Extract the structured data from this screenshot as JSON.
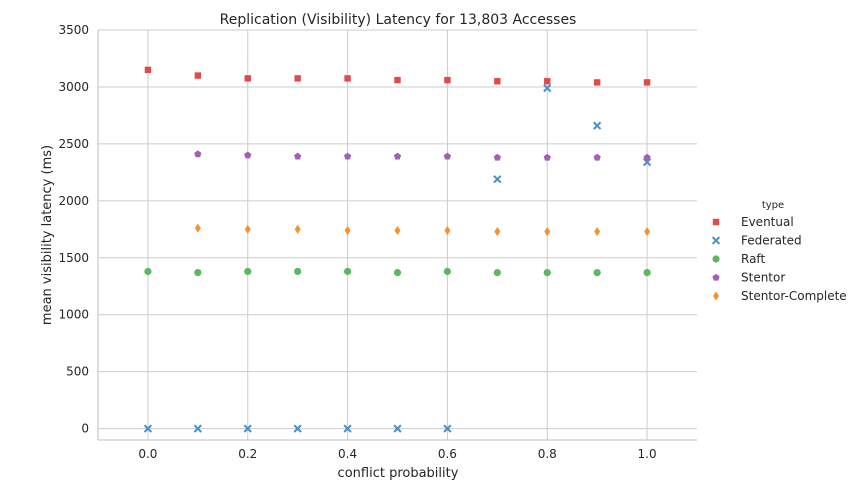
{
  "chart_data": {
    "type": "scatter",
    "title": "Replication (Visibility) Latency for 13,803 Accesses",
    "xlabel": "conflict probability",
    "ylabel": "mean visibility latency (ms)",
    "xlim": [
      -0.1,
      1.1
    ],
    "ylim": [
      -100,
      3500
    ],
    "xticks": [
      0.0,
      0.2,
      0.4,
      0.6,
      0.8,
      1.0
    ],
    "xtick_labels": [
      "0.0",
      "0.2",
      "0.4",
      "0.6",
      "0.8",
      "1.0"
    ],
    "yticks": [
      0,
      500,
      1000,
      1500,
      2000,
      2500,
      3000,
      3500
    ],
    "ytick_labels": [
      "0",
      "500",
      "1000",
      "1500",
      "2000",
      "2500",
      "3000",
      "3500"
    ],
    "grid": true,
    "legend_title": "type",
    "legend_position": "right",
    "series": [
      {
        "name": "Eventual",
        "marker": "square",
        "color": "#e24a4a",
        "x": [
          0.0,
          0.1,
          0.2,
          0.3,
          0.4,
          0.5,
          0.6,
          0.7,
          0.8,
          0.9,
          1.0
        ],
        "y": [
          3150,
          3100,
          3075,
          3075,
          3075,
          3060,
          3060,
          3050,
          3050,
          3040,
          3040
        ]
      },
      {
        "name": "Federated",
        "marker": "x",
        "color": "#4a90c8",
        "x": [
          0.0,
          0.1,
          0.2,
          0.3,
          0.4,
          0.5,
          0.6,
          0.7,
          0.8,
          0.9,
          1.0
        ],
        "y": [
          0,
          0,
          0,
          0,
          0,
          0,
          0,
          2190,
          2990,
          2660,
          2340
        ]
      },
      {
        "name": "Raft",
        "marker": "circle",
        "color": "#5cb85c",
        "x": [
          0.0,
          0.1,
          0.2,
          0.3,
          0.4,
          0.5,
          0.6,
          0.7,
          0.8,
          0.9,
          1.0
        ],
        "y": [
          1380,
          1370,
          1380,
          1380,
          1380,
          1370,
          1380,
          1370,
          1370,
          1370,
          1370
        ]
      },
      {
        "name": "Stentor",
        "marker": "pentagon",
        "color": "#a35fb5",
        "x": [
          0.1,
          0.2,
          0.3,
          0.4,
          0.5,
          0.6,
          0.7,
          0.8,
          0.9,
          1.0
        ],
        "y": [
          2410,
          2400,
          2390,
          2390,
          2390,
          2390,
          2380,
          2380,
          2380,
          2380
        ]
      },
      {
        "name": "Stentor-Complete",
        "marker": "diamond",
        "color": "#f5922f",
        "x": [
          0.1,
          0.2,
          0.3,
          0.4,
          0.5,
          0.6,
          0.7,
          0.8,
          0.9,
          1.0
        ],
        "y": [
          1760,
          1750,
          1750,
          1740,
          1740,
          1740,
          1730,
          1730,
          1730,
          1730
        ]
      }
    ]
  }
}
